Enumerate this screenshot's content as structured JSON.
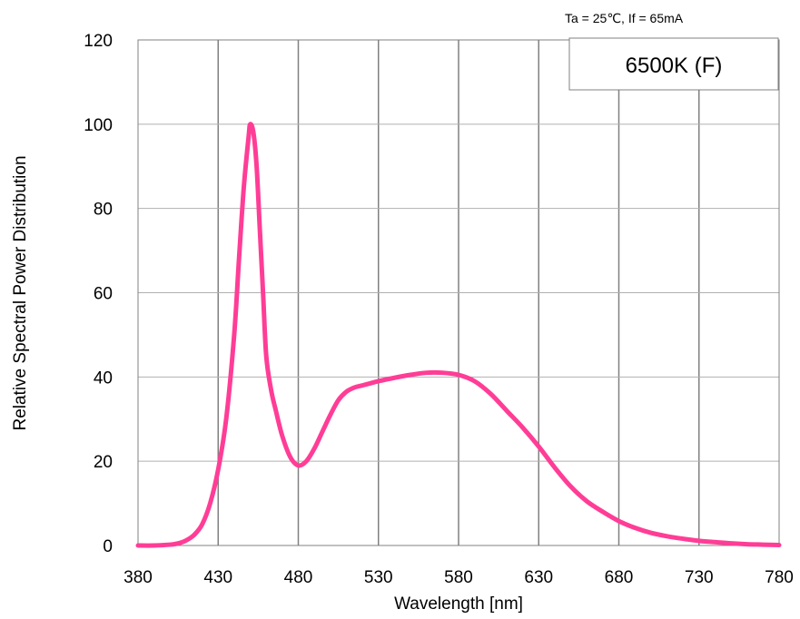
{
  "chart_data": {
    "type": "line",
    "condition": "Ta = 25℃,  If = 65mA",
    "legend_box": "6500K (F)",
    "xlabel": "Wavelength [nm]",
    "ylabel": "Relative Spectral Power Distribution",
    "xlim": [
      380,
      780
    ],
    "ylim": [
      0,
      120
    ],
    "x_ticks": [
      380,
      430,
      480,
      530,
      580,
      630,
      680,
      730,
      780
    ],
    "y_ticks": [
      0,
      20,
      40,
      60,
      80,
      100,
      120
    ],
    "grid": {
      "vertical": true,
      "horizontal": true
    },
    "series": [
      {
        "color": "#ff3d96",
        "x": [
          380,
          390,
          400,
          405,
          410,
          415,
          420,
          425,
          430,
          435,
          440,
          443,
          446,
          449,
          450,
          452,
          454,
          456,
          458,
          460,
          463,
          466,
          470,
          475,
          480,
          485,
          490,
          495,
          500,
          505,
          510,
          515,
          520,
          525,
          530,
          540,
          550,
          560,
          570,
          580,
          590,
          600,
          610,
          620,
          630,
          640,
          650,
          660,
          670,
          680,
          690,
          700,
          710,
          720,
          730,
          740,
          750,
          760,
          770,
          780
        ],
        "values": [
          0,
          0,
          0.2,
          0.5,
          1.2,
          2.5,
          5,
          10,
          18,
          30,
          50,
          68,
          85,
          97,
          100,
          98,
          90,
          75,
          60,
          45,
          37,
          32,
          26,
          21,
          19,
          20,
          23,
          27,
          31,
          34.5,
          36.5,
          37.5,
          38,
          38.5,
          39,
          39.8,
          40.5,
          41,
          41,
          40.5,
          39,
          36,
          32,
          28,
          23.5,
          18.5,
          14,
          10.5,
          8,
          5.8,
          4.2,
          3,
          2.2,
          1.6,
          1.1,
          0.8,
          0.5,
          0.3,
          0.2,
          0.1
        ]
      }
    ]
  }
}
